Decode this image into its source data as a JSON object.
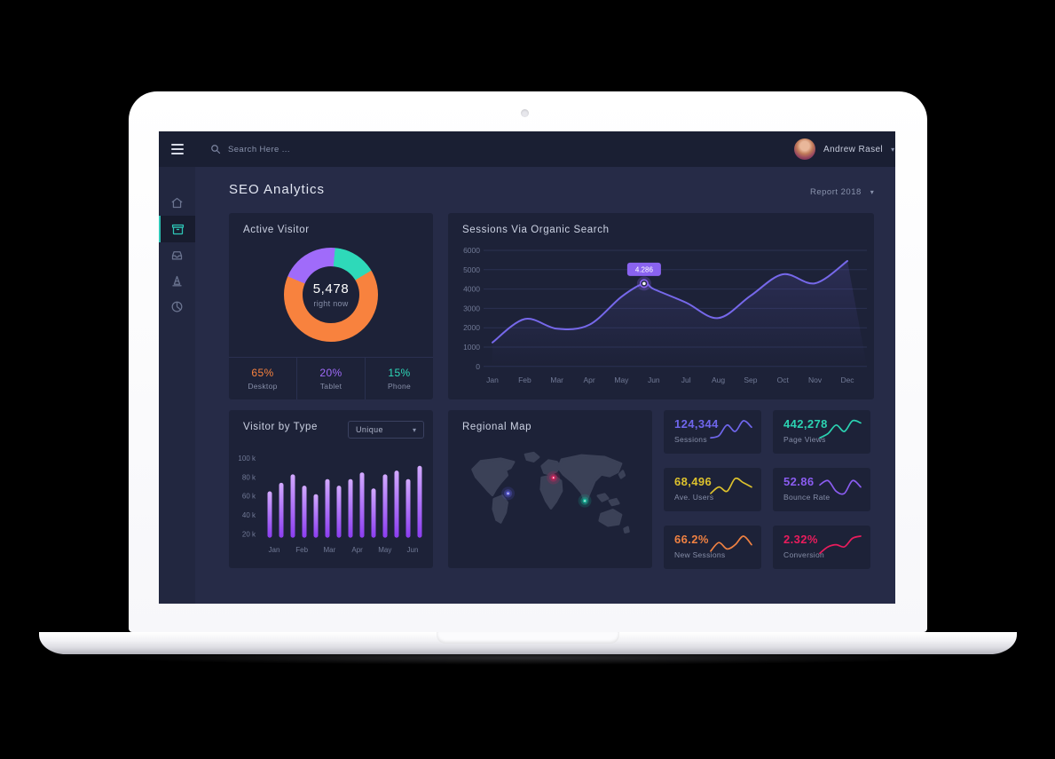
{
  "topbar": {
    "search_placeholder": "Search Here ...",
    "user_name": "Andrew Rasel"
  },
  "sidebar": {
    "items": [
      {
        "icon": "home-icon",
        "active": false
      },
      {
        "icon": "archive-icon",
        "active": true
      },
      {
        "icon": "inbox-icon",
        "active": false
      },
      {
        "icon": "cone-icon",
        "active": false
      },
      {
        "icon": "pie-chart-icon",
        "active": false
      }
    ]
  },
  "page": {
    "title": "SEO Analytics",
    "report_select": "Report 2018"
  },
  "active_visitor": {
    "title": "Active Visitor",
    "center_value": "5,478",
    "center_label": "right now",
    "legend": [
      {
        "value": "65%",
        "label": "Desktop",
        "color": "#f8823e"
      },
      {
        "value": "20%",
        "label": "Tablet",
        "color": "#a06bfa"
      },
      {
        "value": "15%",
        "label": "Phone",
        "color": "#2ed9b9"
      }
    ]
  },
  "visitor_by_type": {
    "title": "Visitor by Type",
    "filter_value": "Unique"
  },
  "regional_map": {
    "title": "Regional Map",
    "markers": [
      {
        "region": "north-america",
        "x": 49,
        "y": 53,
        "color": "#5b5bd6"
      },
      {
        "region": "europe",
        "x": 104,
        "y": 34,
        "color": "#d6215c"
      },
      {
        "region": "south-asia",
        "x": 142,
        "y": 62,
        "color": "#18b89a"
      }
    ]
  },
  "stats": [
    {
      "value": "124,344",
      "label": "Sessions",
      "color": "#6f66ec"
    },
    {
      "value": "442,278",
      "label": "Page Views",
      "color": "#2bd3b2"
    },
    {
      "value": "68,496",
      "label": "Ave. Users",
      "color": "#dcc12d"
    },
    {
      "value": "52.86",
      "label": "Bounce Rate",
      "color": "#8a5cf0"
    },
    {
      "value": "66.2%",
      "label": "New Sessions",
      "color": "#ef8142"
    },
    {
      "value": "2.32%",
      "label": "Conversion",
      "color": "#ea1c5d"
    }
  ],
  "chart_data": [
    {
      "id": "active-visitor-donut",
      "type": "pie",
      "title": "Active Visitor",
      "labels": [
        "Desktop",
        "Tablet",
        "Phone"
      ],
      "values": [
        65,
        20,
        15
      ],
      "unit": "%",
      "colors": [
        "#f8823e",
        "#a06bfa",
        "#2ed9b9"
      ],
      "center_value": "5,478",
      "center_label": "right now",
      "start_angle": 293,
      "draw_order": [
        1,
        2,
        0
      ]
    },
    {
      "id": "sessions-organic-search",
      "type": "line",
      "title": "Sessions Via Organic Search",
      "x": [
        "Jan",
        "Feb",
        "Mar",
        "Apr",
        "May",
        "Jun",
        "Jul",
        "Aug",
        "Sep",
        "Oct",
        "Nov",
        "Dec"
      ],
      "values": [
        1240,
        2450,
        1950,
        2150,
        3600,
        4000,
        3300,
        2500,
        3650,
        4760,
        4300,
        5450
      ],
      "peak": {
        "x_index": 4.7,
        "value": 4286,
        "label": "4.286"
      },
      "yticks": [
        0,
        1000,
        2000,
        3000,
        4000,
        5000,
        6000
      ],
      "ylim": [
        0,
        6000
      ],
      "grid": true,
      "color": "#7668ea"
    },
    {
      "id": "visitor-by-type-bars",
      "type": "bar",
      "title": "Visitor by Type",
      "categories": [
        "Jan",
        "Feb",
        "Mar",
        "Apr",
        "May",
        "Jun"
      ],
      "values": [
        65,
        74,
        83,
        71,
        62,
        78,
        71,
        78,
        85,
        68,
        83,
        87,
        78,
        92
      ],
      "unit": "k",
      "y_tick_labels": [
        "100 k",
        "80 k",
        "60 k",
        "40 k",
        "20 k"
      ],
      "ylim": [
        20,
        100
      ],
      "bar_gradient": [
        "#d2a9ff",
        "#8b3df0"
      ]
    },
    {
      "id": "stat-sparklines",
      "type": "line",
      "series": [
        {
          "name": "Sessions",
          "values": [
            2,
            3,
            8,
            5,
            10,
            7
          ]
        },
        {
          "name": "Page Views",
          "values": [
            2,
            4,
            8,
            5,
            10,
            9
          ]
        },
        {
          "name": "Ave. Users",
          "values": [
            3,
            6,
            4,
            10,
            8,
            6
          ]
        },
        {
          "name": "Bounce Rate",
          "values": [
            7,
            9,
            4,
            3,
            9,
            6
          ]
        },
        {
          "name": "New Sessions",
          "values": [
            3,
            7,
            4,
            6,
            10,
            6
          ]
        },
        {
          "name": "Conversion",
          "values": [
            2,
            5,
            6,
            5,
            9,
            10
          ]
        }
      ]
    }
  ]
}
